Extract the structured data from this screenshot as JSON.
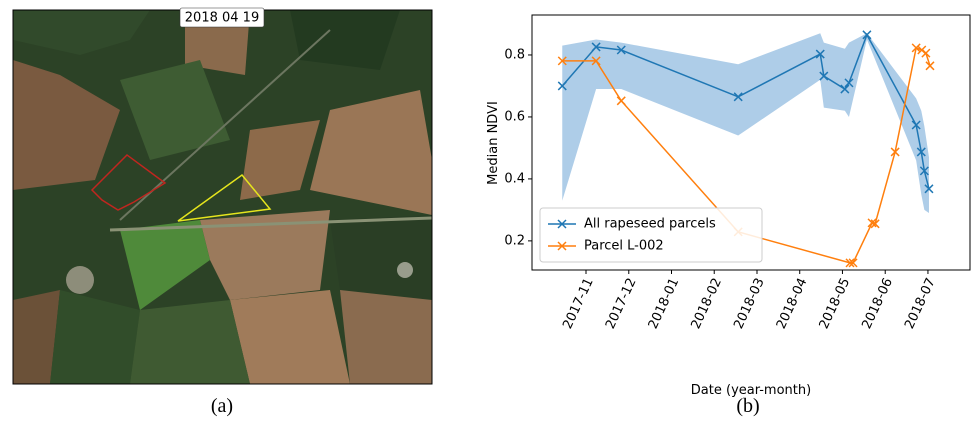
{
  "image": {
    "date_label": "2018 04 19",
    "caption": "(a)"
  },
  "chart_data": {
    "type": "line",
    "caption": "(b)",
    "xlabel": "Date (year-month)",
    "ylabel": "Median NDVI",
    "xlim": [
      2017.728,
      2018.582
    ],
    "ylim": [
      0.106,
      0.929
    ],
    "xticks": [
      {
        "value": 2017.8333,
        "label": "2017-11"
      },
      {
        "value": 2017.9167,
        "label": "2017-12"
      },
      {
        "value": 2018.0,
        "label": "2018-01"
      },
      {
        "value": 2018.0833,
        "label": "2018-02"
      },
      {
        "value": 2018.1667,
        "label": "2018-03"
      },
      {
        "value": 2018.25,
        "label": "2018-04"
      },
      {
        "value": 2018.3333,
        "label": "2018-05"
      },
      {
        "value": 2018.4167,
        "label": "2018-06"
      },
      {
        "value": 2018.5,
        "label": "2018-07"
      }
    ],
    "yticks": [
      0.2,
      0.4,
      0.6,
      0.8
    ],
    "legend": "lower left",
    "series": [
      {
        "name": "All rapeseed parcels",
        "color": "#1f77b4",
        "band_color": "#aecde8",
        "x": [
          2017.787,
          2017.853,
          2017.902,
          2018.13,
          2018.29,
          2018.297,
          2018.338,
          2018.346,
          2018.381,
          2018.477,
          2018.487,
          2018.493,
          2018.502
        ],
        "values": [
          0.7,
          0.826,
          0.816,
          0.665,
          0.803,
          0.732,
          0.69,
          0.71,
          0.865,
          0.574,
          0.487,
          0.426,
          0.368
        ],
        "band_upper": [
          0.83,
          0.85,
          0.84,
          0.77,
          0.87,
          0.84,
          0.82,
          0.84,
          0.87,
          0.66,
          0.62,
          0.57,
          0.47
        ],
        "band_lower": [
          0.33,
          0.69,
          0.69,
          0.54,
          0.72,
          0.63,
          0.62,
          0.6,
          0.85,
          0.46,
          0.35,
          0.3,
          0.29
        ]
      },
      {
        "name": "Parcel L-002",
        "color": "#ff7f0e",
        "x": [
          2017.787,
          2017.853,
          2017.902,
          2018.13,
          2018.348,
          2018.354,
          2018.391,
          2018.397,
          2018.436,
          2018.477,
          2018.488,
          2018.496,
          2018.504
        ],
        "values": [
          0.781,
          0.781,
          0.652,
          0.229,
          0.129,
          0.129,
          0.258,
          0.255,
          0.487,
          0.823,
          0.816,
          0.806,
          0.765
        ]
      }
    ]
  }
}
